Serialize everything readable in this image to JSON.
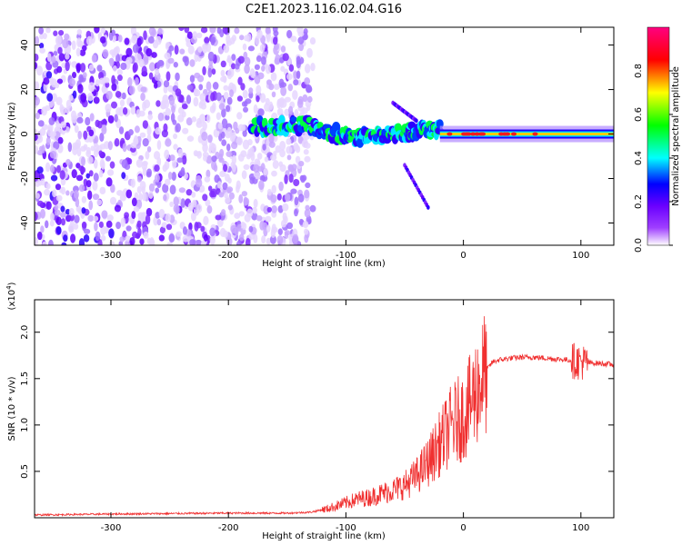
{
  "title": "C2E1.2023.116.02.04.G16",
  "chart_data": [
    {
      "type": "heatmap",
      "xlabel": "Height of straight line (km)",
      "ylabel": "Frequency (Hz)",
      "xlim": [
        -365,
        128
      ],
      "ylim": [
        -50,
        48
      ],
      "x_ticks": [
        -300,
        -200,
        -100,
        0,
        100
      ],
      "y_ticks": [
        -40,
        -20,
        0,
        20,
        40
      ],
      "colorbar": {
        "label": "Normalized spectral amplitude",
        "range": [
          0,
          1
        ],
        "ticks": [
          "0.0",
          "0.2",
          "0.4",
          "0.6",
          "0.8"
        ],
        "colormap": [
          "#ffffff",
          "#7f00ff",
          "#0000ff",
          "#00ffff",
          "#00ff00",
          "#ffff00",
          "#ff0000",
          "#ff00ff"
        ]
      },
      "features": {
        "noise_region_x": [
          -365,
          -128
        ],
        "carrier_line": {
          "x": [
            -20,
            128
          ],
          "frequency": 0,
          "amplitude": 0.85
        },
        "trace_segments": [
          {
            "x": [
              -180,
              -130
            ],
            "frequency": [
              3,
              4
            ]
          },
          {
            "x": [
              -130,
              -90
            ],
            "frequency": [
              3,
              -2
            ]
          },
          {
            "x": [
              -90,
              -50
            ],
            "frequency": [
              -2,
              1
            ]
          },
          {
            "x": [
              -50,
              -20
            ],
            "frequency": [
              1,
              2
            ]
          }
        ],
        "branch_up": {
          "x": [
            -60,
            -40
          ],
          "frequency": [
            14,
            6
          ]
        },
        "branch_down": {
          "x": [
            -50,
            -30
          ],
          "frequency": [
            -14,
            -33
          ]
        }
      }
    },
    {
      "type": "line",
      "xlabel": "Height of straight line (km)",
      "ylabel": "SNR (10 * v/v)",
      "scale_label": "(x10",
      "scale_exponent": "4",
      "scale_suffix": ")",
      "xlim": [
        -365,
        128
      ],
      "ylim": [
        0,
        23500
      ],
      "x_ticks": [
        -300,
        -200,
        -100,
        0,
        100
      ],
      "y_ticks": [
        0.5,
        1.0,
        1.5,
        2.0
      ],
      "series_color": "#f03030",
      "series": [
        {
          "x": [
            -365,
            -300,
            -250,
            -200,
            -150,
            -130,
            -115,
            -100,
            -90,
            -80,
            -70,
            -60,
            -50,
            -40,
            -30,
            -25,
            -20,
            -15,
            -10,
            -5,
            0,
            5,
            10,
            15,
            20,
            25,
            30,
            40,
            50,
            60,
            70,
            80,
            90,
            95,
            100,
            105,
            110,
            120,
            128
          ],
          "values": [
            300,
            400,
            450,
            500,
            500,
            600,
            1000,
            1600,
            2000,
            2200,
            2600,
            3000,
            3500,
            4500,
            6000,
            7000,
            8000,
            9000,
            10000,
            10500,
            11000,
            12000,
            13500,
            14800,
            16000,
            16800,
            17000,
            17200,
            17300,
            17300,
            17200,
            17100,
            17000,
            16900,
            16800,
            16700,
            16700,
            16600,
            16500
          ]
        }
      ]
    }
  ]
}
